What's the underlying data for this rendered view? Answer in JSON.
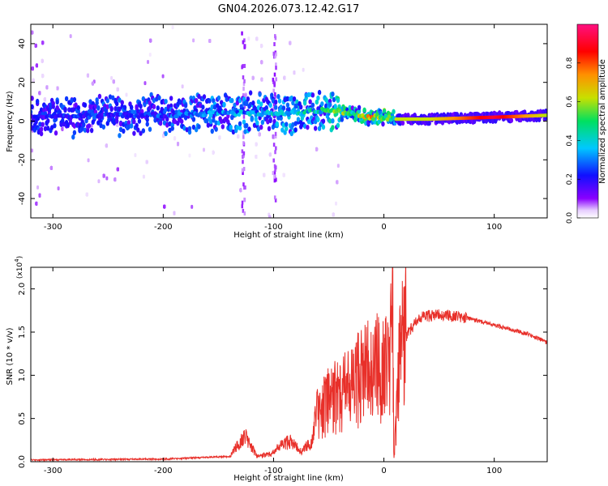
{
  "figure_title": "GN04.2026.073.12.42.G17",
  "chart_data": [
    {
      "type": "heatmap",
      "title": "GN04.2026.073.12.42.G17",
      "xlabel": "Height of straight line (km)",
      "ylabel": "Frequency (Hz)",
      "xlim": [
        -320,
        148
      ],
      "ylim": [
        -50,
        50
      ],
      "xticks": [
        -300,
        -200,
        -100,
        0,
        100
      ],
      "xtick_labels": [
        "-300",
        "-200",
        "-100",
        "0",
        "100"
      ],
      "yticks": [
        -40,
        -20,
        0,
        20,
        40
      ],
      "ytick_labels": [
        "-40",
        "-20",
        "0",
        "20",
        "40"
      ],
      "colorbar": {
        "label": "Normalized spectral amplitude",
        "range": [
          0.0,
          1.0
        ],
        "ticks": [
          0.0,
          0.2,
          0.4,
          0.6,
          0.8
        ],
        "tick_labels": [
          "0.0",
          "0.2",
          "0.4",
          "0.6",
          "0.8"
        ],
        "colors": [
          "#ffffff",
          "#8a00ff",
          "#1010ff",
          "#00c8ff",
          "#00e060",
          "#c8e000",
          "#ff9000",
          "#ff0000",
          "#ff1080"
        ]
      },
      "ridge": {
        "x": [
          -320,
          -250,
          -200,
          -150,
          -100,
          -75,
          -50,
          -40,
          -30,
          -15,
          0,
          10,
          40,
          100,
          148
        ],
        "freq": [
          2,
          3,
          3,
          4,
          4,
          4,
          6,
          5,
          4,
          2,
          2,
          1,
          1,
          2,
          3
        ],
        "peak_amplitude": [
          0.25,
          0.3,
          0.32,
          0.4,
          0.45,
          0.5,
          0.6,
          0.65,
          0.7,
          0.8,
          0.8,
          0.62,
          0.62,
          0.92,
          0.6
        ]
      }
    },
    {
      "type": "line",
      "xlabel": "Height of straight line (km)",
      "ylabel": "SNR (10 * v/v)",
      "y_multiplier": "(x10",
      "y_multiplier_exponent": "4",
      "y_multiplier_close": ")",
      "xlim": [
        -320,
        148
      ],
      "ylim": [
        0,
        2.25
      ],
      "xticks": [
        -300,
        -200,
        -100,
        0,
        100
      ],
      "xtick_labels": [
        "-300",
        "-200",
        "-100",
        "0",
        "100"
      ],
      "yticks": [
        0.0,
        0.5,
        1.0,
        1.5,
        2.0
      ],
      "ytick_labels": [
        "0.0",
        "0.5",
        "1.0",
        "1.5",
        "2.0"
      ],
      "line_color": "#e8302a",
      "series": [
        {
          "name": "SNR",
          "x": [
            -320,
            -200,
            -140,
            -130,
            -125,
            -115,
            -100,
            -95,
            -85,
            -80,
            -75,
            -65,
            -60,
            -50,
            -40,
            -30,
            -20,
            -10,
            0,
            5,
            8,
            9,
            15,
            25,
            35,
            50,
            70,
            100,
            130,
            148
          ],
          "values": [
            0.01,
            0.02,
            0.05,
            0.2,
            0.25,
            0.05,
            0.08,
            0.15,
            0.2,
            0.15,
            0.1,
            0.2,
            0.6,
            0.7,
            0.75,
            0.85,
            1.0,
            1.1,
            1.1,
            1.15,
            2.2,
            0.0,
            1.35,
            1.55,
            1.68,
            1.7,
            1.68,
            1.58,
            1.48,
            1.38
          ]
        }
      ]
    }
  ]
}
